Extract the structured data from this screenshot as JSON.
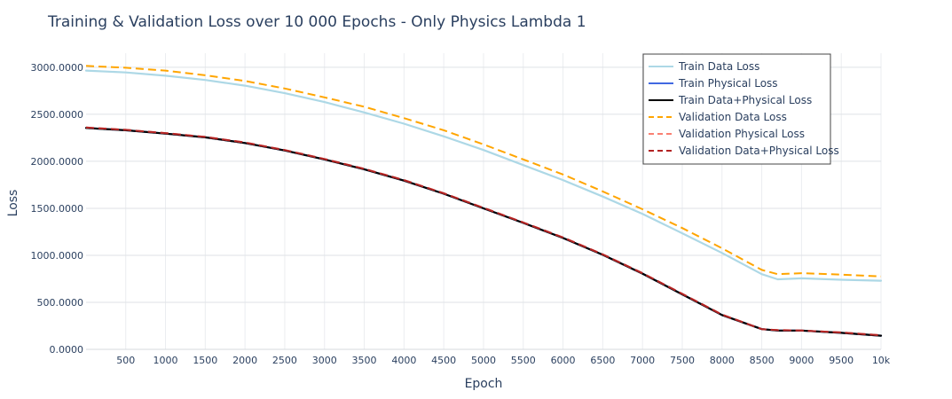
{
  "chart_data": {
    "type": "line",
    "title": "Training & Validation Loss over 10 000 Epochs - Only Physics Lambda 1",
    "xlabel": "Epoch",
    "ylabel": "Loss",
    "xlim": [
      1,
      10000
    ],
    "ylim": [
      0,
      3150
    ],
    "grid": true,
    "legend_position": "top-right",
    "x_ticks": [
      500,
      1000,
      1500,
      2000,
      2500,
      3000,
      3500,
      4000,
      4500,
      5000,
      5500,
      6000,
      6500,
      7000,
      7500,
      8000,
      8500,
      9000,
      9500,
      10000
    ],
    "x_tick_labels": [
      "500",
      "1000",
      "1500",
      "2000",
      "2500",
      "3000",
      "3500",
      "4000",
      "4500",
      "5000",
      "5500",
      "6000",
      "6500",
      "7000",
      "7500",
      "8000",
      "8500",
      "9000",
      "9500",
      "10k"
    ],
    "y_ticks": [
      0,
      500,
      1000,
      1500,
      2000,
      2500,
      3000
    ],
    "y_tick_labels": [
      "0.0000",
      "500.0000",
      "1000.0000",
      "1500.0000",
      "2000.0000",
      "2500.0000",
      "3000.0000"
    ],
    "x": [
      1,
      500,
      1000,
      1500,
      2000,
      2500,
      3000,
      3500,
      4000,
      4500,
      5000,
      5500,
      6000,
      6500,
      7000,
      7500,
      8000,
      8500,
      8700,
      9000,
      9500,
      10000
    ],
    "series": [
      {
        "name": "Train Data Loss",
        "color": "#add8e6",
        "dash": "solid",
        "values": [
          2965,
          2945,
          2910,
          2865,
          2805,
          2725,
          2630,
          2520,
          2400,
          2265,
          2120,
          1960,
          1800,
          1625,
          1440,
          1235,
          1025,
          800,
          745,
          755,
          740,
          730
        ]
      },
      {
        "name": "Train Physical Loss",
        "color": "#4169e1",
        "dash": "solid",
        "values": [
          2355,
          2330,
          2295,
          2255,
          2195,
          2115,
          2020,
          1915,
          1795,
          1655,
          1500,
          1345,
          1185,
          1005,
          805,
          585,
          365,
          215,
          200,
          200,
          175,
          145
        ]
      },
      {
        "name": "Train Data+Physical Loss",
        "color": "#000000",
        "dash": "solid",
        "values": [
          2355,
          2330,
          2295,
          2255,
          2195,
          2115,
          2020,
          1915,
          1795,
          1655,
          1500,
          1345,
          1185,
          1005,
          805,
          585,
          365,
          215,
          200,
          200,
          175,
          145
        ]
      },
      {
        "name": "Validation Data Loss",
        "color": "#ffa500",
        "dash": "dash",
        "values": [
          3015,
          2995,
          2965,
          2915,
          2855,
          2775,
          2680,
          2580,
          2460,
          2330,
          2180,
          2020,
          1860,
          1680,
          1490,
          1290,
          1075,
          845,
          800,
          810,
          795,
          775
        ]
      },
      {
        "name": "Validation Physical Loss",
        "color": "#fa8072",
        "dash": "dash",
        "values": [
          2360,
          2335,
          2300,
          2260,
          2200,
          2120,
          2025,
          1920,
          1800,
          1660,
          1505,
          1350,
          1190,
          1010,
          810,
          590,
          370,
          215,
          205,
          200,
          180,
          150
        ]
      },
      {
        "name": "Validation Data+Physical Loss",
        "color": "#b22222",
        "dash": "dash",
        "values": [
          2360,
          2335,
          2300,
          2260,
          2200,
          2120,
          2025,
          1920,
          1800,
          1660,
          1505,
          1350,
          1190,
          1010,
          810,
          590,
          370,
          215,
          205,
          200,
          180,
          150
        ]
      }
    ]
  }
}
